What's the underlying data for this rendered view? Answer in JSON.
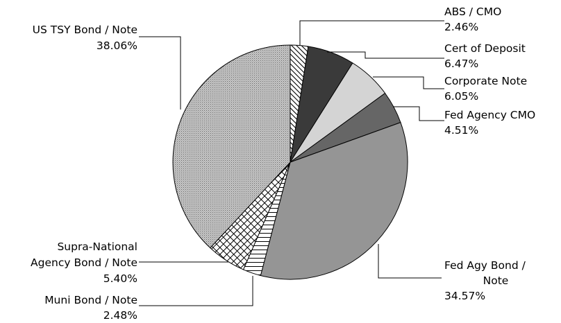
{
  "chart_data": {
    "type": "pie",
    "title": "",
    "slices": [
      {
        "name": "ABS / CMO",
        "value": 2.46,
        "label": "2.46%",
        "color": "#ffffff",
        "pattern": "diagonal-hatch"
      },
      {
        "name": "Cert of Deposit",
        "value": 6.47,
        "label": "6.47%",
        "color": "#3a3a3a",
        "pattern": "solid"
      },
      {
        "name": "Corporate Note",
        "value": 6.05,
        "label": "6.05%",
        "color": "#d4d4d4",
        "pattern": "solid"
      },
      {
        "name": "Fed Agency CMO",
        "value": 4.51,
        "label": "4.51%",
        "color": "#666666",
        "pattern": "solid"
      },
      {
        "name": "Fed Agy Bond / Note",
        "value": 34.57,
        "label": "34.57%",
        "color": "#959595",
        "pattern": "solid"
      },
      {
        "name": "Muni Bond / Note",
        "value": 2.48,
        "label": "2.48%",
        "color": "#ffffff",
        "pattern": "horizontal-lines"
      },
      {
        "name": "Supra-National Agency Bond / Note",
        "value": 5.4,
        "label": "5.40%",
        "color": "#ffffff",
        "pattern": "crosshatch"
      },
      {
        "name": "US TSY Bond / Note",
        "value": 38.06,
        "label": "38.06%",
        "color": "#bdbdbd",
        "pattern": "fine-dots"
      }
    ],
    "start": "12 o'clock",
    "direction": "clockwise",
    "legend": "none",
    "labels": "outside with leader lines"
  }
}
